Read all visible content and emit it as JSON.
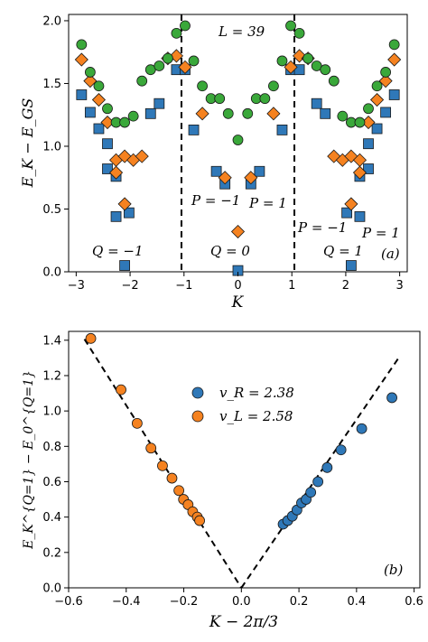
{
  "colors": {
    "blue": "#2f78b8",
    "orange": "#f58220",
    "green": "#3aa83a",
    "edge": "#1a1a1a"
  },
  "chart_data": [
    {
      "panel": "(a)",
      "type": "scatter",
      "xlabel": "K",
      "ylabel": "E_K − E_GS",
      "xlim": [
        -3.14,
        3.14
      ],
      "ylim": [
        0,
        2.05
      ],
      "xticks": [
        "−3",
        "−2",
        "−1",
        "0",
        "1",
        "2",
        "3"
      ],
      "yticks": [
        "0.0",
        "0.5",
        "1.0",
        "1.5",
        "2.0"
      ],
      "annotations": {
        "L": "L = 39",
        "Q_left": "Q = −1",
        "Q_mid": "Q = 0",
        "Q_right": "Q = 1",
        "P_mid_left": "P = −1",
        "P_mid_right": "P = 1",
        "P_right_left": "P = −1",
        "P_right_right": "P = 1",
        "panel_label": "(a)"
      },
      "vlines": [
        -1.0472,
        1.0472
      ],
      "series": [
        {
          "marker": "square",
          "color": "blue",
          "points": [
            [
              -2.9,
              1.41
            ],
            [
              -2.74,
              1.27
            ],
            [
              -2.58,
              1.14
            ],
            [
              -2.42,
              1.02
            ],
            [
              -2.26,
              0.76
            ],
            [
              -2.1,
              0.05
            ],
            [
              -2.42,
              0.82
            ],
            [
              -2.26,
              0.44
            ],
            [
              -2.02,
              0.47
            ],
            [
              -1.62,
              1.26
            ],
            [
              -1.46,
              1.34
            ],
            [
              -1.14,
              1.61
            ],
            [
              -0.98,
              1.61
            ],
            [
              -0.82,
              1.13
            ],
            [
              -0.4,
              0.8
            ],
            [
              -0.24,
              0.7
            ],
            [
              0.0,
              0.01
            ],
            [
              0.24,
              0.7
            ],
            [
              0.4,
              0.8
            ],
            [
              0.82,
              1.13
            ],
            [
              0.98,
              1.61
            ],
            [
              1.14,
              1.61
            ],
            [
              1.46,
              1.34
            ],
            [
              1.62,
              1.26
            ],
            [
              2.26,
              0.44
            ],
            [
              2.1,
              0.05
            ],
            [
              2.02,
              0.47
            ],
            [
              2.42,
              0.82
            ],
            [
              2.26,
              0.76
            ],
            [
              2.42,
              1.02
            ],
            [
              2.58,
              1.14
            ],
            [
              2.74,
              1.27
            ],
            [
              2.9,
              1.41
            ]
          ]
        },
        {
          "marker": "diamond",
          "color": "orange",
          "points": [
            [
              -2.9,
              1.69
            ],
            [
              -2.74,
              1.52
            ],
            [
              -2.58,
              1.37
            ],
            [
              -2.42,
              1.19
            ],
            [
              -2.26,
              0.89
            ],
            [
              -2.1,
              0.92
            ],
            [
              -2.26,
              0.79
            ],
            [
              -2.1,
              0.54
            ],
            [
              -1.94,
              0.89
            ],
            [
              -1.78,
              0.92
            ],
            [
              -1.3,
              1.7
            ],
            [
              -1.14,
              1.72
            ],
            [
              -0.98,
              1.63
            ],
            [
              -0.66,
              1.26
            ],
            [
              -0.24,
              0.75
            ],
            [
              0.0,
              0.32
            ],
            [
              0.24,
              0.75
            ],
            [
              0.66,
              1.26
            ],
            [
              0.98,
              1.63
            ],
            [
              1.14,
              1.72
            ],
            [
              1.3,
              1.7
            ],
            [
              1.78,
              0.92
            ],
            [
              1.94,
              0.89
            ],
            [
              2.1,
              0.54
            ],
            [
              2.26,
              0.79
            ],
            [
              2.1,
              0.92
            ],
            [
              2.26,
              0.89
            ],
            [
              2.42,
              1.19
            ],
            [
              2.58,
              1.37
            ],
            [
              2.74,
              1.52
            ],
            [
              2.9,
              1.69
            ]
          ]
        },
        {
          "marker": "circle",
          "color": "green",
          "points": [
            [
              -2.9,
              1.81
            ],
            [
              -2.74,
              1.59
            ],
            [
              -2.58,
              1.48
            ],
            [
              -2.42,
              1.3
            ],
            [
              -2.26,
              1.19
            ],
            [
              -2.1,
              1.19
            ],
            [
              -1.94,
              1.24
            ],
            [
              -1.78,
              1.52
            ],
            [
              -1.62,
              1.61
            ],
            [
              -1.46,
              1.64
            ],
            [
              -1.3,
              1.7
            ],
            [
              -1.14,
              1.9
            ],
            [
              -0.98,
              1.96
            ],
            [
              -0.82,
              1.68
            ],
            [
              -0.66,
              1.48
            ],
            [
              -0.5,
              1.38
            ],
            [
              -0.34,
              1.38
            ],
            [
              -0.18,
              1.26
            ],
            [
              0.0,
              1.05
            ],
            [
              0.18,
              1.26
            ],
            [
              0.34,
              1.38
            ],
            [
              0.5,
              1.38
            ],
            [
              0.66,
              1.48
            ],
            [
              0.82,
              1.68
            ],
            [
              0.98,
              1.96
            ],
            [
              1.14,
              1.9
            ],
            [
              1.3,
              1.7
            ],
            [
              1.46,
              1.64
            ],
            [
              1.62,
              1.61
            ],
            [
              1.78,
              1.52
            ],
            [
              1.94,
              1.24
            ],
            [
              2.1,
              1.19
            ],
            [
              2.26,
              1.19
            ],
            [
              2.42,
              1.3
            ],
            [
              2.58,
              1.48
            ],
            [
              2.74,
              1.59
            ],
            [
              2.9,
              1.81
            ]
          ]
        }
      ]
    },
    {
      "panel": "(b)",
      "type": "scatter",
      "xlabel": "K − 2π/3",
      "ylabel": "E_K^{Q=1} − E_0^{Q=1}",
      "xlim": [
        -0.6,
        0.62
      ],
      "ylim": [
        0,
        1.45
      ],
      "xticks": [
        "−0.6",
        "−0.4",
        "−0.2",
        "0.0",
        "0.2",
        "0.4",
        "0.6"
      ],
      "yticks": [
        "0.0",
        "0.2",
        "0.4",
        "0.6",
        "0.8",
        "1.0",
        "1.2",
        "1.4"
      ],
      "legend": {
        "position": "upper-center",
        "entries": [
          "v_R = 2.38",
          "v_L = 2.58"
        ]
      },
      "panel_label": "(b)",
      "fit_lines": [
        {
          "slope": 2.38,
          "x_range": [
            0,
            0.55
          ]
        },
        {
          "slope": -2.58,
          "x_range": [
            -0.545,
            0
          ]
        }
      ],
      "series": [
        {
          "name": "v_R = 2.38",
          "color": "blue",
          "x": [
            0.145,
            0.161,
            0.177,
            0.193,
            0.209,
            0.225,
            0.241,
            0.266,
            0.298,
            0.346,
            0.418,
            0.523
          ],
          "y": [
            0.36,
            0.38,
            0.405,
            0.44,
            0.48,
            0.5,
            0.54,
            0.6,
            0.68,
            0.78,
            0.9,
            1.075
          ]
        },
        {
          "name": "v_L = 2.58",
          "color": "orange",
          "x": [
            -0.523,
            -0.418,
            -0.362,
            -0.314,
            -0.274,
            -0.241,
            -0.217,
            -0.201,
            -0.185,
            -0.169,
            -0.153,
            -0.145
          ],
          "y": [
            1.41,
            1.12,
            0.93,
            0.79,
            0.69,
            0.62,
            0.55,
            0.5,
            0.47,
            0.43,
            0.4,
            0.38
          ]
        }
      ]
    }
  ]
}
